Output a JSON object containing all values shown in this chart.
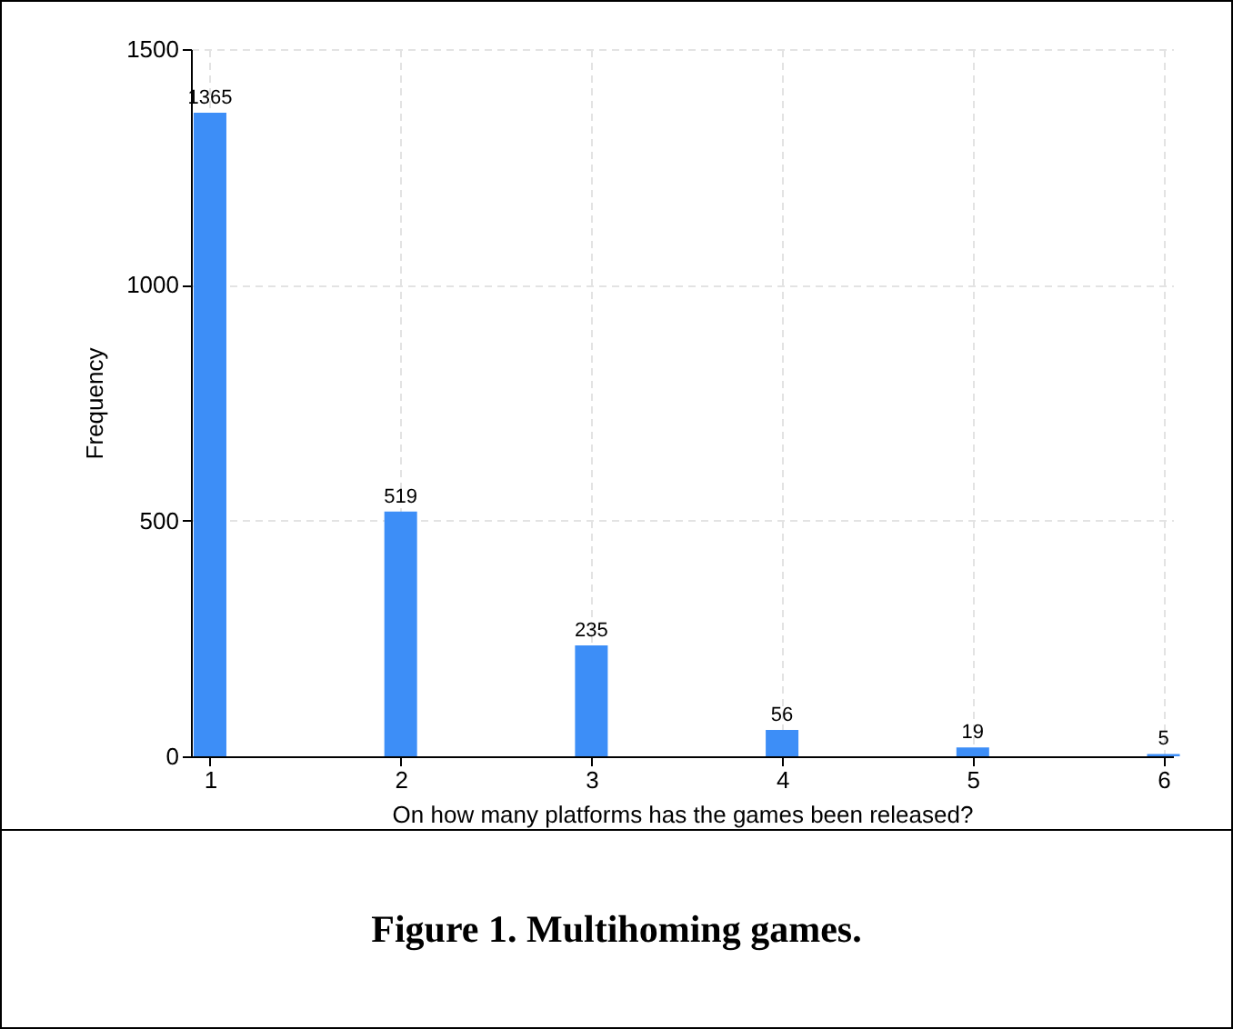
{
  "chart_data": {
    "type": "bar",
    "x": [
      1,
      2,
      3,
      4,
      5,
      6
    ],
    "values": [
      1365,
      519,
      235,
      56,
      19,
      5
    ],
    "color": "#3d8ef7",
    "data_labels": true,
    "xlabel": "On how many platforms has the games been released?",
    "ylabel": "Frequency",
    "xlim": [
      0.9,
      6.05
    ],
    "xticks": [
      1,
      2,
      3,
      4,
      5,
      6
    ],
    "ylim": [
      0,
      1500
    ],
    "yticks": [
      0,
      500,
      1000,
      1500
    ],
    "grid": true,
    "annotations": [
      "Figure 1. Multihoming games."
    ]
  }
}
